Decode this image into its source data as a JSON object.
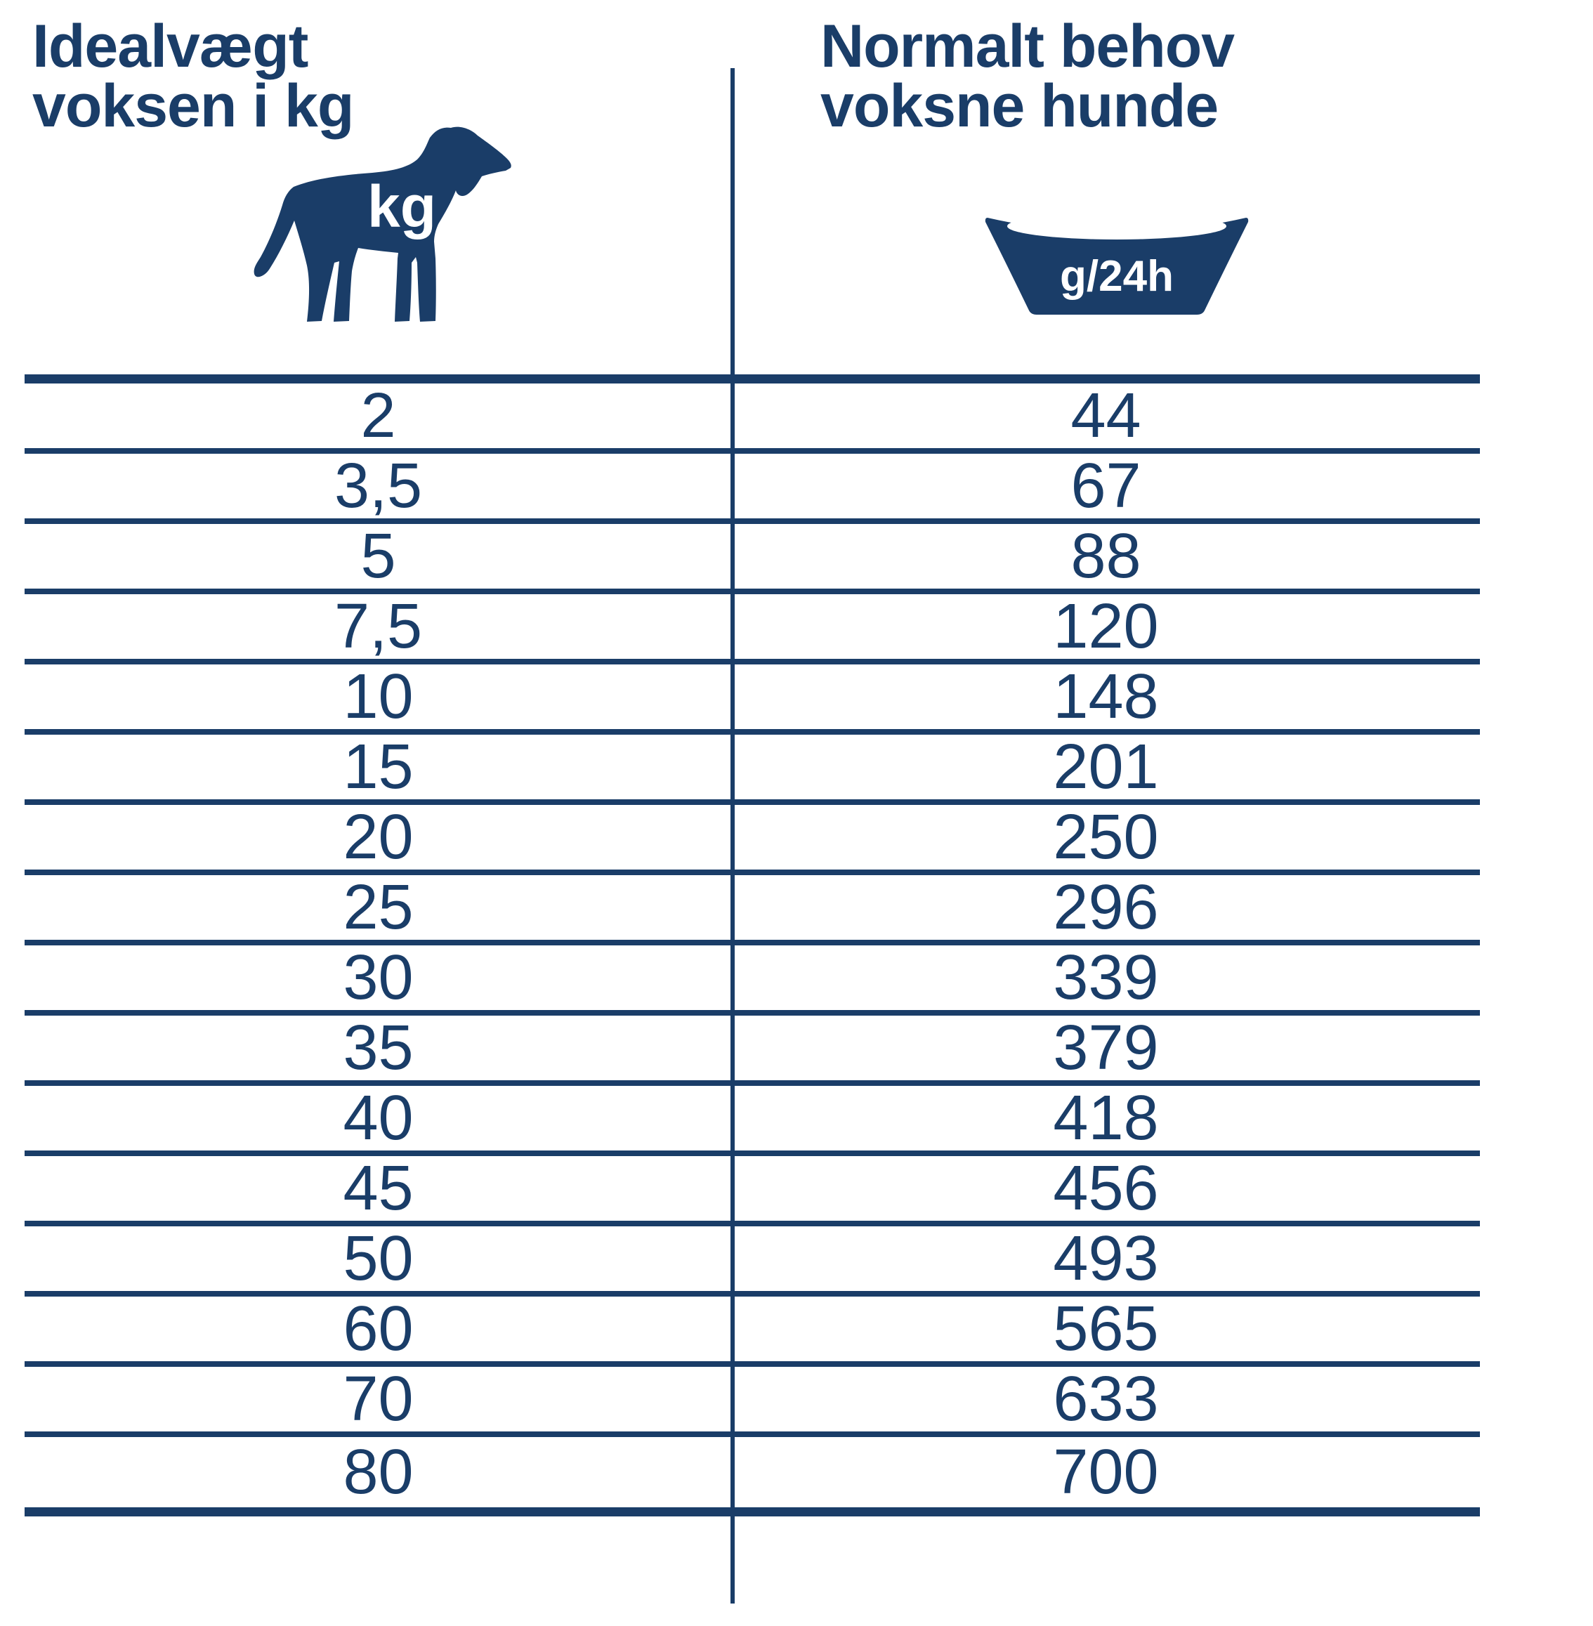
{
  "colors": {
    "navy": "#1a3d68",
    "background": "#ffffff"
  },
  "columns": {
    "left": {
      "header_line1": "Idealvægt",
      "header_line2": "voksen i kg",
      "icon": "dog-icon",
      "icon_text": "kg"
    },
    "right": {
      "header_line1": "Normalt behov",
      "header_line2": "voksne hunde",
      "icon": "bowl-icon",
      "icon_text": "g/24h"
    }
  },
  "table": {
    "rows": [
      {
        "weight": "2",
        "amount": "44"
      },
      {
        "weight": "3,5",
        "amount": "67"
      },
      {
        "weight": "5",
        "amount": "88"
      },
      {
        "weight": "7,5",
        "amount": "120"
      },
      {
        "weight": "10",
        "amount": "148"
      },
      {
        "weight": "15",
        "amount": "201"
      },
      {
        "weight": "20",
        "amount": "250"
      },
      {
        "weight": "25",
        "amount": "296"
      },
      {
        "weight": "30",
        "amount": "339"
      },
      {
        "weight": "35",
        "amount": "379"
      },
      {
        "weight": "40",
        "amount": "418"
      },
      {
        "weight": "45",
        "amount": "456"
      },
      {
        "weight": "50",
        "amount": "493"
      },
      {
        "weight": "60",
        "amount": "565"
      },
      {
        "weight": "70",
        "amount": "633"
      },
      {
        "weight": "80",
        "amount": "700"
      }
    ]
  }
}
